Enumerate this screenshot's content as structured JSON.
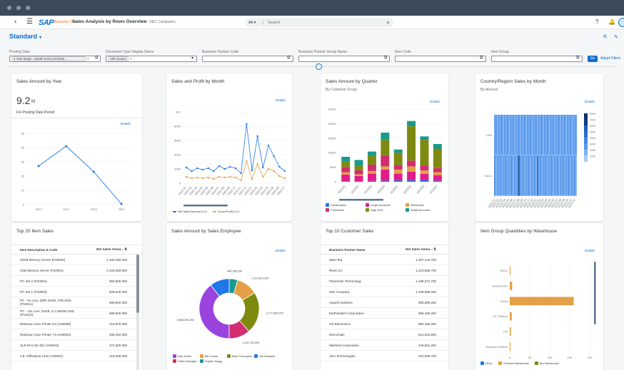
{
  "shell": {
    "product": "SAP",
    "product_sub": "Business One",
    "app_title": "Sales Analysis by Rows Overview",
    "company": "OEC Computers",
    "search_scope": "All",
    "search_placeholder": "Search"
  },
  "page": {
    "variant": "Standard"
  },
  "filters": {
    "posting_date": {
      "label": "Posting Date",
      "token": "2 Year Begin...Month End (1/1/2022..."
    },
    "doc_type": {
      "label": "Document Type Display Name",
      "token": "A/R Invoice"
    },
    "bp_code": {
      "label": "Business Partner Code"
    },
    "bp_group": {
      "label": "Business Partner Group Name"
    },
    "item_code": {
      "label": "Item Code"
    },
    "item_group": {
      "label": "Item Group"
    },
    "go": "Go",
    "adapt": "Adapt Filters"
  },
  "cards": {
    "sales_year": {
      "title": "Sales Amount by Year",
      "kpi": "9.2",
      "unit": "M",
      "sub": "For Posting Date Period",
      "details": "Details",
      "chart_data": {
        "type": "line",
        "x": [
          "2021",
          "2021",
          "2023",
          "2024"
        ],
        "yticks": [
          "50",
          "40",
          "30",
          "20",
          "10",
          "0"
        ],
        "ylim": [
          0,
          50
        ],
        "values": [
          27,
          41,
          23,
          0.5
        ]
      }
    },
    "sales_profit": {
      "title": "Sales and Profit by Month",
      "details": "Details",
      "chart_data": {
        "type": "line",
        "yticks": [
          "10K",
          "8000",
          "6000",
          "4000",
          "2000",
          "0"
        ],
        "ylim": [
          0,
          10000
        ],
        "categories": [
          "2023-01",
          "2023-02",
          "2023-03",
          "2023-04",
          "2023-05",
          "2023-06",
          "2023-07",
          "2023-08",
          "2023-09",
          "2023-10",
          "2023-11",
          "2023-12",
          "2024-01",
          "2024-02",
          "2024-03",
          "2024-04",
          "2024-05",
          "2024-06",
          "2024-07"
        ],
        "series": [
          {
            "name": "Net Sales Amount (LC)",
            "color": "#1f77e8",
            "values": [
              2200,
              1700,
              2100,
              1900,
              2100,
              1700,
              2400,
              2000,
              2300,
              2100,
              1400,
              8300,
              1800,
              6600,
              2200,
              5300,
              3800,
              2300,
              1700
            ]
          },
          {
            "name": "Gross Profit (LC)",
            "color": "#e3a047",
            "values": [
              900,
              700,
              800,
              700,
              800,
              600,
              900,
              800,
              900,
              800,
              400,
              3100,
              600,
              2700,
              900,
              2000,
              1700,
              1000,
              700
            ]
          }
        ]
      }
    },
    "sales_quarter": {
      "title": "Sales Amount by Quarter",
      "sub": "By Customer Group",
      "details": "Details",
      "chart_data": {
        "type": "bar",
        "stacked": true,
        "yticks": [
          "2500K",
          "2000K",
          "1500K",
          "1000K",
          "500K",
          "0"
        ],
        "ylim": [
          0,
          2500000
        ],
        "categories": [
          "2022Q1",
          "2022Q2",
          "2022Q3",
          "2022Q4",
          "2023Q1",
          "2023Q2",
          "2023Q3",
          "2023Q4"
        ],
        "series": [
          {
            "name": "Construction",
            "color": "#1f77e8",
            "values": [
              20000,
              20000,
              30000,
              40000,
              50000,
              60000,
              60000,
              40000
            ]
          },
          {
            "name": "Large Accounts",
            "color": "#e31b8c",
            "values": [
              230000,
              180000,
              250000,
              380000,
              230000,
              290000,
              210000,
              190000
            ]
          },
          {
            "name": "Wholesale",
            "color": "#e3a047",
            "values": [
              80000,
              60000,
              90000,
              110000,
              140000,
              180000,
              120000,
              100000
            ]
          },
          {
            "name": "Production",
            "color": "#d12e6f",
            "values": [
              170000,
              140000,
              220000,
              380000,
              160000,
              200000,
              170000,
              140000
            ]
          },
          {
            "name": "High Tech",
            "color": "#7e8a0f",
            "values": [
              190000,
              150000,
              300000,
              530000,
              420000,
              1180000,
              880000,
              670000
            ]
          },
          {
            "name": "Small Accounts",
            "color": "#1a9a8b",
            "values": [
              170000,
              200000,
              150000,
              250000,
              110000,
              180000,
              120000,
              160000
            ]
          }
        ]
      }
    },
    "country": {
      "title": "Country/Region Sales by Month",
      "sub": "By Amount",
      "details": "Details",
      "chart_data": {
        "type": "heatmap",
        "rows": [
          "USA",
          "NULL"
        ],
        "scale": [
          "800K",
          "700K",
          "600K",
          "500K",
          "400K",
          "300K",
          "200K",
          "100K"
        ],
        "col_labels": [
          "2022-01",
          "2022-02",
          "2022-03",
          "2022-04",
          "2022-05",
          "2022-06",
          "2022-07",
          "2022-08",
          "2022-09",
          "2022-10",
          "2022-11",
          "2022-12",
          "2023-01",
          "2023-02",
          "2023-03",
          "2023-04",
          "2023-05",
          "2023-06",
          "2023-07",
          "2023-08",
          "2023-09",
          "2023-10",
          "2023-11",
          "2023-12"
        ]
      }
    },
    "top_items": {
      "title": "Top 20 Item Sales",
      "col1": "Item Description & Code",
      "col2": "Net Sales Amou...",
      "rows": [
        {
          "name": "32GB Memory Server (P20002)",
          "value": "2,183,250.000"
        },
        {
          "name": "4GB Memory Server (P10001)",
          "value": "2,183,250.000"
        },
        {
          "name": "PC Set 2 (P10004)",
          "value": "960,600.000"
        },
        {
          "name": "PC Set 1 (P10003)",
          "value": "826,545.000"
        },
        {
          "name": "PC - 8x core, DDR 32GB, 2TB HDD (P10011)",
          "value": "680,800.000"
        },
        {
          "name": "PC - 12x core, 64GB, 5 x 256GB SSD (P10013)",
          "value": "699,600.000"
        },
        {
          "name": "Rainbow Color Printer 5.0 (A00005)",
          "value": "419,875.000"
        },
        {
          "name": "Rainbow Color Printer 7.5 (A00004)",
          "value": "406,250.000"
        },
        {
          "name": "SLR M-CAM 40C (A00003)",
          "value": "272,500.000"
        },
        {
          "name": "J.B. Officeprint 1420 (A00001)",
          "value": "215,000.000"
        }
      ]
    },
    "sales_employee": {
      "title": "Sales Amount by Sales Employee",
      "details": "Details",
      "chart_data": {
        "type": "pie",
        "donut": true,
        "slices": [
          {
            "name": "Sophie Klogg",
            "value": 446186250,
            "label": "446,186,250",
            "color": "#1a9a8b"
          },
          {
            "name": "Bill Levine",
            "value": 1110871250,
            "label": "1,110,871,250",
            "color": "#e3a047"
          },
          {
            "name": "Brad Thompson",
            "value": 2177640920,
            "label": "2,177,640,920",
            "color": "#7e8a0f"
          },
          {
            "name": "Sales Manager",
            "value": 1102700250,
            "label": "1,102,700,250",
            "color": "#d12e6f"
          },
          {
            "name": "Dan Hoers",
            "value": 3806400250,
            "label": "3,806,400,250",
            "color": "#9a44e0"
          },
          {
            "name": "Jim Boswick",
            "value": 1020000000,
            "label": "",
            "color": "#1f77e8"
          }
        ]
      },
      "legend": [
        "Dan Hoers",
        "Bill Levine",
        "Brad Thompson",
        "Jim Boswick",
        "Sales Manager",
        "Sophie Klogg"
      ]
    },
    "top_customers": {
      "title": "Top 10 Customer Sales",
      "col1": "Business Partner Name",
      "col2": "Net Sales Amou...",
      "rows": [
        {
          "name": "Maxi-Teq",
          "value": "1,487,122.750"
        },
        {
          "name": "Riven Inc",
          "value": "1,210,686.750"
        },
        {
          "name": "Parameter Technology",
          "value": "1,196,372.750"
        },
        {
          "name": "Star Company",
          "value": "1,158,586.250"
        },
        {
          "name": "Aquent Systems",
          "value": "905,889.250"
        },
        {
          "name": "Earthshaker Corporation",
          "value": "888,186.250"
        },
        {
          "name": "SG Electronics",
          "value": "884,185.000"
        },
        {
          "name": "Microchips",
          "value": "612,922.500"
        },
        {
          "name": "Mashina Corporation",
          "value": "446,501.250"
        },
        {
          "name": "ADA Technologies",
          "value": "410,908.750"
        }
      ]
    },
    "item_group": {
      "title": "Item Group Quantities by Warehouse",
      "details": "Details",
      "chart_data": {
        "type": "bar",
        "orientation": "horizontal",
        "xticks": [
          "0",
          "50",
          "100",
          "150",
          "200"
        ],
        "xlim": [
          0,
          200
        ],
        "categories": [
          "NULL",
          "Accessories",
          "Items",
          "J.B. Printers",
          "PQ",
          "Rainbow Printers"
        ],
        "series": [
          {
            "name": "NULL",
            "color": "#1f77e8",
            "values": [
              0,
              0,
              0,
              0,
              0,
              0
            ]
          },
          {
            "name": "General Warehouse",
            "color": "#e3a047",
            "values": [
              2,
              6,
              160,
              5,
              3,
              2
            ]
          },
          {
            "name": "Bin Warehouse",
            "color": "#7e8a0f",
            "values": [
              0,
              0,
              0,
              0,
              0,
              0
            ]
          }
        ]
      },
      "legend": [
        "NULL",
        "General Warehouse",
        "Bin Warehouse"
      ]
    }
  }
}
